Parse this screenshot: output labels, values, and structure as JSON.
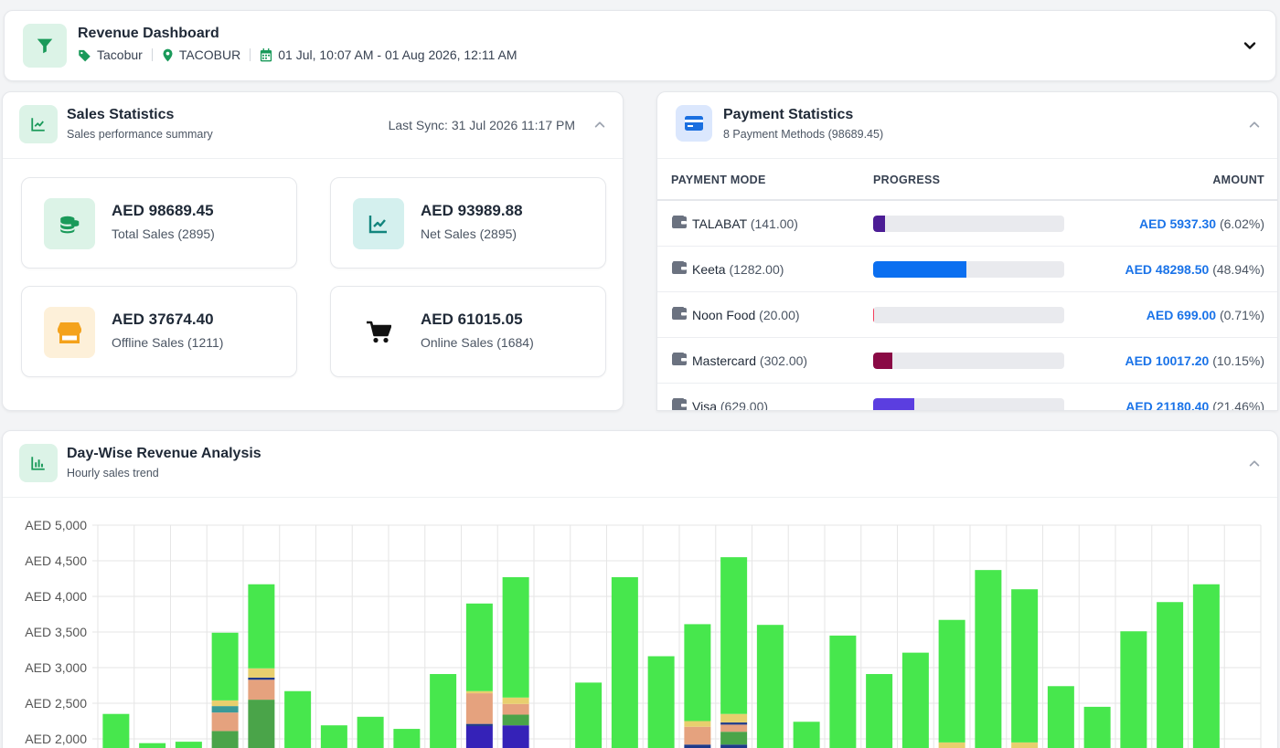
{
  "header": {
    "title": "Revenue Dashboard",
    "brand": "Tacobur",
    "location": "TACOBUR",
    "date_range": "01 Jul, 10:07 AM - 01 Aug 2026, 12:11 AM"
  },
  "sales": {
    "title": "Sales Statistics",
    "subtitle": "Sales performance summary",
    "last_sync": "Last Sync: 31 Jul 2026 11:17 PM",
    "cards": [
      {
        "value": "AED 98689.45",
        "label": "Total Sales (2895)",
        "icon": "coins-icon"
      },
      {
        "value": "AED 93989.88",
        "label": "Net Sales (2895)",
        "icon": "trend-chart-icon"
      },
      {
        "value": "AED 37674.40",
        "label": "Offline Sales (1211)",
        "icon": "store-icon"
      },
      {
        "value": "AED 61015.05",
        "label": "Online Sales (1684)",
        "icon": "cart-icon"
      }
    ]
  },
  "payments": {
    "title": "Payment Statistics",
    "subtitle": "8 Payment Methods (98689.45)",
    "columns": {
      "mode": "PAYMENT MODE",
      "progress": "PROGRESS",
      "amount": "AMOUNT"
    },
    "rows": [
      {
        "name": "TALABAT",
        "count": "(141.00)",
        "amount": "AED 5937.30",
        "percent": "(6.02%)",
        "fraction": 0.0602,
        "color": "#4c1d95"
      },
      {
        "name": "Keeta",
        "count": "(1282.00)",
        "amount": "AED 48298.50",
        "percent": "(48.94%)",
        "fraction": 0.4894,
        "color": "#0b6ff0"
      },
      {
        "name": "Noon Food",
        "count": "(20.00)",
        "amount": "AED 699.00",
        "percent": "(0.71%)",
        "fraction": 0.0071,
        "color": "#f43f5e"
      },
      {
        "name": "Mastercard",
        "count": "(302.00)",
        "amount": "AED 10017.20",
        "percent": "(10.15%)",
        "fraction": 0.1015,
        "color": "#8a0a45"
      },
      {
        "name": "Visa",
        "count": "(629.00)",
        "amount": "AED 21180.40",
        "percent": "(21.46%)",
        "fraction": 0.2146,
        "color": "#5b3ee0"
      }
    ]
  },
  "revenue": {
    "title": "Day-Wise Revenue Analysis",
    "subtitle": "Hourly sales trend"
  },
  "chart_data": {
    "type": "bar",
    "stacked": true,
    "ylim": [
      2000,
      5000
    ],
    "y_ticks": [
      "AED 2,000",
      "AED 2,500",
      "AED 3,000",
      "AED 3,500",
      "AED 4,000",
      "AED 4,500",
      "AED 5,000"
    ],
    "y_tick_values": [
      2000,
      2500,
      3000,
      3500,
      4000,
      4500,
      5000
    ],
    "grid": true,
    "colors": {
      "green": "#47e74d",
      "darkgreen": "#4aa449",
      "peach": "#e5a27e",
      "yellow": "#e8cf6e",
      "teal": "#3a9a98",
      "navy": "#1e3a8a",
      "indigo": "#3522b8"
    },
    "bars": [
      {
        "segments": [
          [
            "green",
            2350
          ]
        ]
      },
      {
        "segments": [
          [
            "green",
            1940
          ]
        ]
      },
      {
        "segments": [
          [
            "green",
            1960
          ]
        ]
      },
      {
        "segments": [
          [
            "darkgreen",
            2110
          ],
          [
            "peach",
            2370
          ],
          [
            "teal",
            2460
          ],
          [
            "yellow",
            2540
          ],
          [
            "green",
            3490
          ]
        ]
      },
      {
        "segments": [
          [
            "darkgreen",
            2550
          ],
          [
            "peach",
            2830
          ],
          [
            "navy",
            2860
          ],
          [
            "yellow",
            2990
          ],
          [
            "green",
            4170
          ]
        ]
      },
      {
        "segments": [
          [
            "green",
            2670
          ]
        ]
      },
      {
        "segments": [
          [
            "green",
            2190
          ]
        ]
      },
      {
        "segments": [
          [
            "green",
            2310
          ]
        ]
      },
      {
        "segments": [
          [
            "green",
            2140
          ]
        ]
      },
      {
        "segments": [
          [
            "green",
            2910
          ]
        ]
      },
      {
        "segments": [
          [
            "indigo",
            2180
          ],
          [
            "navy",
            2210
          ],
          [
            "peach",
            2640
          ],
          [
            "yellow",
            2670
          ],
          [
            "green",
            3900
          ]
        ]
      },
      {
        "segments": [
          [
            "indigo",
            2190
          ],
          [
            "darkgreen",
            2340
          ],
          [
            "peach",
            2490
          ],
          [
            "yellow",
            2580
          ],
          [
            "green",
            4270
          ]
        ]
      },
      {
        "segments": []
      },
      {
        "segments": [
          [
            "green",
            2790
          ]
        ]
      },
      {
        "segments": [
          [
            "green",
            4270
          ]
        ]
      },
      {
        "segments": [
          [
            "green",
            3160
          ]
        ]
      },
      {
        "segments": [
          [
            "navy",
            1920
          ],
          [
            "peach",
            2170
          ],
          [
            "yellow",
            2250
          ],
          [
            "green",
            3610
          ]
        ]
      },
      {
        "segments": [
          [
            "navy",
            1920
          ],
          [
            "darkgreen",
            2100
          ],
          [
            "peach",
            2200
          ],
          [
            "navy",
            2230
          ],
          [
            "yellow",
            2350
          ],
          [
            "green",
            4550
          ]
        ]
      },
      {
        "segments": [
          [
            "green",
            3600
          ]
        ]
      },
      {
        "segments": [
          [
            "green",
            2240
          ]
        ]
      },
      {
        "segments": [
          [
            "green",
            3450
          ]
        ]
      },
      {
        "segments": [
          [
            "green",
            2910
          ]
        ]
      },
      {
        "segments": [
          [
            "green",
            3210
          ]
        ]
      },
      {
        "segments": [
          [
            "yellow",
            1950
          ],
          [
            "green",
            3670
          ]
        ]
      },
      {
        "segments": [
          [
            "green",
            4370
          ]
        ]
      },
      {
        "segments": [
          [
            "yellow",
            1950
          ],
          [
            "green",
            4100
          ]
        ]
      },
      {
        "segments": [
          [
            "green",
            2740
          ]
        ]
      },
      {
        "segments": [
          [
            "green",
            2450
          ]
        ]
      },
      {
        "segments": [
          [
            "green",
            3510
          ]
        ]
      },
      {
        "segments": [
          [
            "green",
            3920
          ]
        ]
      },
      {
        "segments": [
          [
            "green",
            4170
          ]
        ]
      }
    ]
  }
}
